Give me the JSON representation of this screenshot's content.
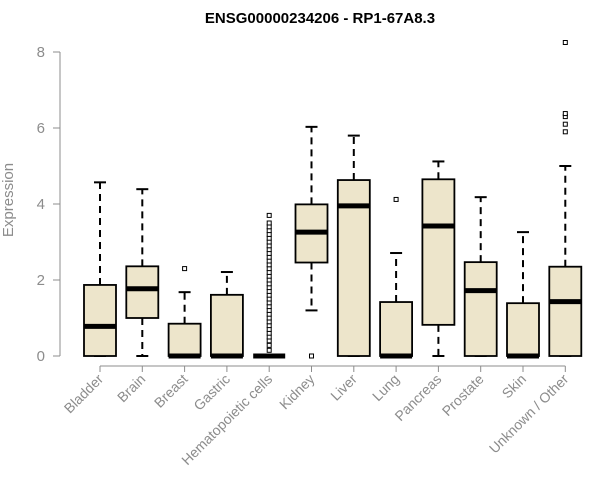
{
  "chart_data": {
    "type": "boxplot",
    "title": "ENSG00000234206 - RP1-67A8.3",
    "xlabel": "",
    "ylabel": "Expression",
    "ylim": [
      0,
      8.2
    ],
    "yticks": [
      0,
      2,
      4,
      6,
      8
    ],
    "grid": false,
    "legend": "none",
    "box_fill": "#ede5cb",
    "categories": [
      "Bladder",
      "Brain",
      "Breast",
      "Gastric",
      "Hematopoietic cells",
      "Kidney",
      "Liver",
      "Lung",
      "Pancreas",
      "Prostate",
      "Skin",
      "Unknown / Other"
    ],
    "boxes": [
      {
        "whisker_low": 0,
        "q1": 0,
        "median": 0.78,
        "q3": 1.87,
        "whisker_high": 4.57,
        "outliers": []
      },
      {
        "whisker_low": 0,
        "q1": 1.0,
        "median": 1.77,
        "q3": 2.36,
        "whisker_high": 4.39,
        "outliers": []
      },
      {
        "whisker_low": 0,
        "q1": 0,
        "median": 0,
        "q3": 0.85,
        "whisker_high": 1.68,
        "outliers": [
          2.3
        ]
      },
      {
        "whisker_low": 0,
        "q1": 0,
        "median": 0,
        "q3": 1.61,
        "whisker_high": 2.21,
        "outliers": []
      },
      {
        "whisker_low": 0,
        "q1": 0,
        "median": 0,
        "q3": 0,
        "whisker_high": 0,
        "outliers": [
          0.15,
          0.28,
          0.4,
          0.5,
          0.6,
          0.7,
          0.8,
          0.9,
          1.0,
          1.1,
          1.2,
          1.3,
          1.4,
          1.5,
          1.6,
          1.7,
          1.8,
          1.9,
          2.0,
          2.1,
          2.2,
          2.3,
          2.4,
          2.5,
          2.6,
          2.7,
          2.8,
          2.9,
          3.0,
          3.1,
          3.2,
          3.3,
          3.4,
          3.5,
          3.7
        ]
      },
      {
        "whisker_low": 1.2,
        "q1": 2.46,
        "median": 3.26,
        "q3": 3.99,
        "whisker_high": 6.03,
        "outliers": [
          0
        ]
      },
      {
        "whisker_low": 0,
        "q1": 0,
        "median": 3.95,
        "q3": 4.63,
        "whisker_high": 5.8,
        "outliers": []
      },
      {
        "whisker_low": 0,
        "q1": 0,
        "median": 0,
        "q3": 1.42,
        "whisker_high": 2.71,
        "outliers": [
          4.12
        ]
      },
      {
        "whisker_low": 0,
        "q1": 0.82,
        "median": 3.42,
        "q3": 4.65,
        "whisker_high": 5.12,
        "outliers": []
      },
      {
        "whisker_low": 0,
        "q1": 0,
        "median": 1.72,
        "q3": 2.47,
        "whisker_high": 4.18,
        "outliers": []
      },
      {
        "whisker_low": 0,
        "q1": 0,
        "median": 0,
        "q3": 1.39,
        "whisker_high": 3.26,
        "outliers": []
      },
      {
        "whisker_low": 0,
        "q1": 0,
        "median": 1.43,
        "q3": 2.35,
        "whisker_high": 5.0,
        "outliers": [
          5.9,
          6.1,
          6.3,
          6.38,
          8.25
        ]
      }
    ]
  }
}
